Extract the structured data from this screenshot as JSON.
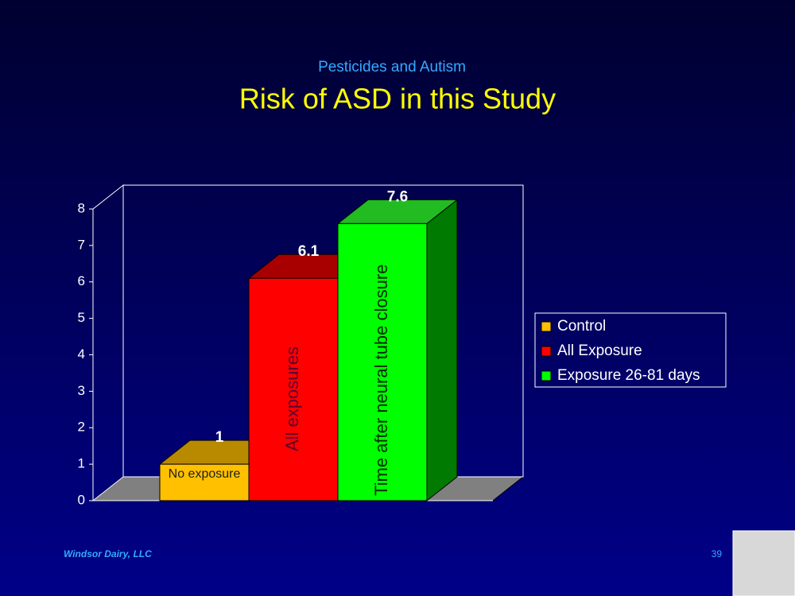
{
  "subtitle": "Pesticides and Autism",
  "footer": "Windsor Dairy, LLC",
  "page_number": "39",
  "chart_data": {
    "type": "bar3d",
    "title": "Risk of ASD in this Study",
    "series": [
      {
        "name": "Control",
        "color": "#ffc000",
        "top_color": "#b88a00",
        "side_color": "#8a6800",
        "label_color": "#202020",
        "values": [
          1
        ],
        "label": "No exposure"
      },
      {
        "name": "All Exposure",
        "color": "#ff0000",
        "top_color": "#a80000",
        "side_color": "#800000",
        "label_color": "#5a0030",
        "values": [
          6.1
        ],
        "label": "All exposures"
      },
      {
        "name": "Exposure 26-81 days",
        "color": "#00ff00",
        "top_color": "#22bb22",
        "side_color": "#007a00",
        "label_color": "#002a00",
        "values": [
          7.6
        ],
        "label": "Time after neural tube closure"
      }
    ],
    "ylim": [
      0,
      8
    ],
    "yticks": [
      0,
      1,
      2,
      3,
      4,
      5,
      6,
      7,
      8
    ],
    "legend": "right"
  }
}
